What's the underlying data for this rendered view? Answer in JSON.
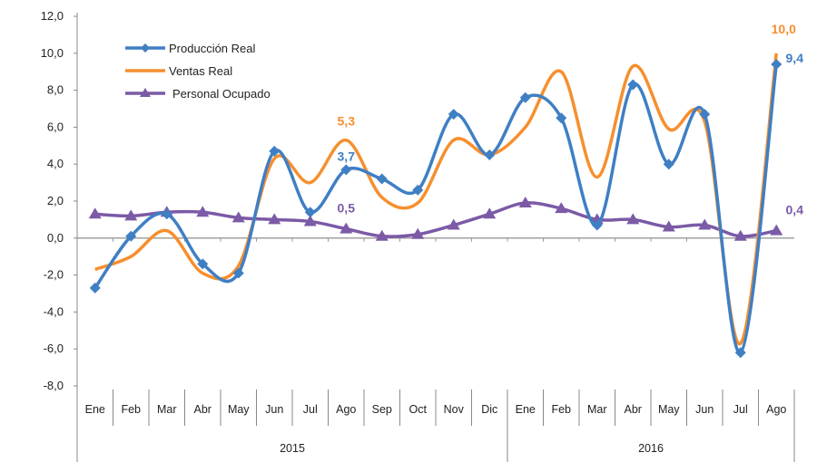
{
  "chart_data": {
    "type": "line",
    "title": "",
    "xlabel": "",
    "ylabel": "",
    "ylim": [
      -8,
      12
    ],
    "yticks": [
      "-8,0",
      "-6,0",
      "-4,0",
      "-2,0",
      "0,0",
      "2,0",
      "4,0",
      "6,0",
      "8,0",
      "10,0",
      "12,0"
    ],
    "ytick_values": [
      -8,
      -6,
      -4,
      -2,
      0,
      2,
      4,
      6,
      8,
      10,
      12
    ],
    "categories": [
      "Ene",
      "Feb",
      "Mar",
      "Abr",
      "May",
      "Jun",
      "Jul",
      "Ago",
      "Sep",
      "Oct",
      "Nov",
      "Dic",
      "Ene",
      "Feb",
      "Mar",
      "Abr",
      "May",
      "Jun",
      "Jul",
      "Ago"
    ],
    "groups": [
      {
        "label": "2015",
        "count": 12
      },
      {
        "label": "2016",
        "count": 8
      }
    ],
    "grid": false,
    "legend_position": "top-left",
    "smooth": true,
    "series": [
      {
        "name": "Producción Real",
        "color": "#3f7fc4",
        "marker": "diamond",
        "values": [
          -2.7,
          0.1,
          1.3,
          -1.4,
          -1.9,
          4.7,
          1.4,
          3.7,
          3.2,
          2.6,
          6.7,
          4.5,
          7.6,
          6.5,
          0.7,
          8.3,
          4.0,
          6.7,
          -6.2,
          9.4
        ]
      },
      {
        "name": "Ventas Real",
        "color": "#f68f2e",
        "marker": "none",
        "values": [
          -1.7,
          -1.0,
          0.4,
          -1.9,
          -1.5,
          4.3,
          3.0,
          5.3,
          2.2,
          1.9,
          5.3,
          4.5,
          6.0,
          9.0,
          3.3,
          9.3,
          5.9,
          6.3,
          -5.7,
          10.0
        ]
      },
      {
        "name": "Personal Ocupado",
        "color": "#7b5aa6",
        "marker": "triangle",
        "values": [
          1.3,
          1.2,
          1.4,
          1.4,
          1.1,
          1.0,
          0.9,
          0.5,
          0.1,
          0.2,
          0.7,
          1.3,
          1.9,
          1.6,
          1.0,
          1.0,
          0.6,
          0.7,
          0.1,
          0.4
        ]
      }
    ],
    "annotations": [
      {
        "series": 1,
        "index": 7,
        "text": "5,3"
      },
      {
        "series": 0,
        "index": 7,
        "text": "3,7"
      },
      {
        "series": 2,
        "index": 7,
        "text": "0,5"
      },
      {
        "series": 1,
        "index": 19,
        "text": "10,0"
      },
      {
        "series": 0,
        "index": 19,
        "text": "9,4"
      },
      {
        "series": 2,
        "index": 19,
        "text": "0,4"
      }
    ]
  }
}
